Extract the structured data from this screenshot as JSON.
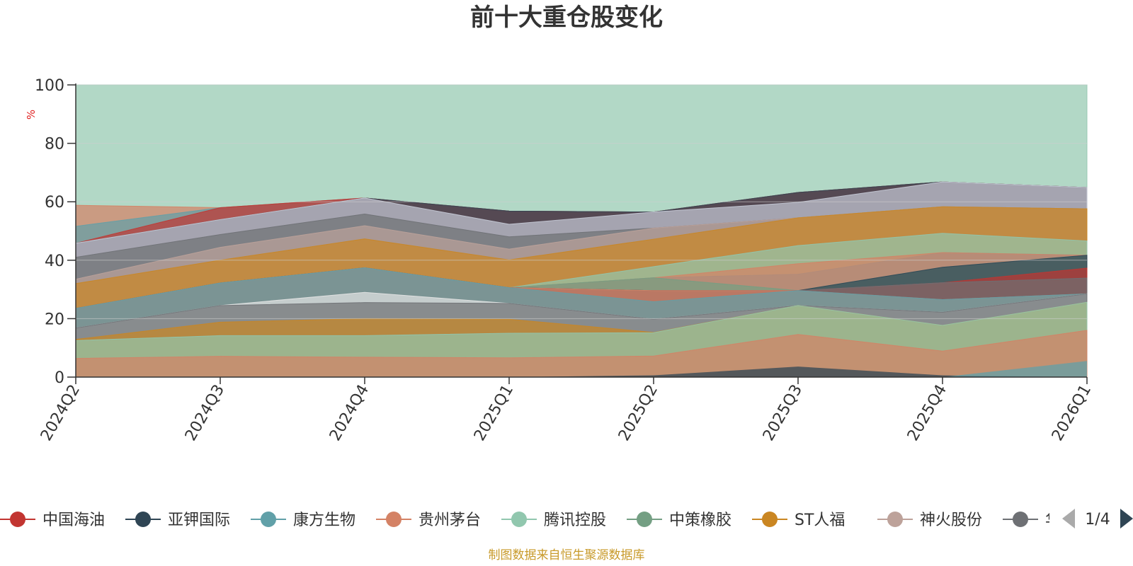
{
  "chart_data": {
    "type": "area",
    "title": "前十大重仓股变化",
    "ylabel": "%",
    "ylim": [
      0,
      100
    ],
    "yticks": [
      0,
      20,
      40,
      60,
      80,
      100
    ],
    "categories": [
      "2024Q2",
      "2024Q3",
      "2024Q4",
      "2025Q1",
      "2025Q2",
      "2025Q3",
      "2025Q4",
      "2026Q1"
    ],
    "grid": true,
    "legend_position": "bottom",
    "legend_page": "1/4",
    "legend": [
      {
        "name": "中国海油",
        "color": "#c23531"
      },
      {
        "name": "亚钾国际",
        "color": "#2f4554"
      },
      {
        "name": "康方生物",
        "color": "#61a0a8"
      },
      {
        "name": "贵州茅台",
        "color": "#d48265"
      },
      {
        "name": "腾讯控股",
        "color": "#91c7ae"
      },
      {
        "name": "中策橡胶",
        "color": "#749f83"
      },
      {
        "name": "ST人福",
        "color": "#ca8622"
      },
      {
        "name": "神火股份",
        "color": "#bda29a"
      },
      {
        "name": "华",
        "color": "#6e7074"
      }
    ],
    "stack_layers": [
      {
        "color": "#d48265",
        "values": [
          6.4,
          7.1,
          6.8,
          6.6,
          7.2,
          14.6,
          8.9,
          16.0
        ]
      },
      {
        "color": "#91c7ae",
        "values": [
          12.5,
          14.2,
          14.2,
          15.0,
          15.2,
          24.5,
          17.7,
          25.6
        ]
      },
      {
        "color": "#ca8622",
        "values": [
          12.9,
          18.8,
          20.0,
          19.8,
          15.3,
          24.5,
          17.7,
          25.6
        ]
      },
      {
        "color": "#6e7074",
        "values": [
          16.8,
          24.5,
          25.5,
          25.2,
          19.8,
          24.5,
          22.2,
          28.5
        ]
      },
      {
        "color": "#e6e6e6",
        "values": [
          16.8,
          24.5,
          29.0,
          25.2,
          19.8,
          24.5,
          22.2,
          28.5
        ]
      },
      {
        "color": "#61a0a8",
        "values": [
          23.5,
          32.2,
          37.4,
          30.6,
          25.8,
          29.6,
          26.5,
          28.5
        ]
      },
      {
        "color": "#d48265",
        "values": [
          23.5,
          32.2,
          37.4,
          30.6,
          29.6,
          29.6,
          26.5,
          28.5
        ]
      },
      {
        "color": "#6e7074",
        "values": [
          23.5,
          32.2,
          37.4,
          30.6,
          29.6,
          29.6,
          32.3,
          33.9
        ]
      },
      {
        "color": "#c23531",
        "values": [
          23.5,
          32.2,
          37.4,
          30.6,
          29.6,
          29.6,
          32.3,
          37.3
        ]
      },
      {
        "color": "#2f4554",
        "values": [
          23.5,
          32.2,
          37.4,
          30.6,
          29.6,
          29.6,
          37.6,
          41.7
        ]
      },
      {
        "color": "#749f83",
        "values": [
          23.5,
          32.2,
          37.4,
          30.6,
          34.0,
          29.6,
          37.6,
          41.7
        ]
      },
      {
        "color": "#d48265",
        "values": [
          23.5,
          32.2,
          37.4,
          30.6,
          34.0,
          38.8,
          42.6,
          41.7
        ]
      },
      {
        "color": "#61a0a8",
        "values": [
          23.5,
          32.2,
          37.4,
          30.6,
          34.0,
          35.2,
          42.6,
          41.7
        ]
      },
      {
        "color": "#91c7ae",
        "values": [
          23.5,
          32.2,
          37.4,
          30.6,
          37.8,
          45.0,
          49.2,
          46.6
        ]
      },
      {
        "color": "#ca8622",
        "values": [
          32.0,
          40.0,
          47.3,
          40.1,
          47.2,
          54.5,
          58.3,
          57.6
        ]
      },
      {
        "color": "#bda29a",
        "values": [
          33.5,
          44.4,
          51.8,
          43.8,
          51.0,
          54.5,
          58.3,
          57.6
        ]
      },
      {
        "color": "#6e7074",
        "values": [
          41.0,
          48.8,
          55.8,
          48.0,
          51.0,
          54.5,
          58.3,
          57.6
        ]
      },
      {
        "color": "#c8ccd8",
        "values": [
          45.8,
          53.9,
          61.3,
          52.3,
          56.5,
          59.8,
          66.8,
          64.9
        ]
      },
      {
        "color": "#2f4554",
        "values": [
          45.8,
          53.9,
          61.3,
          56.8,
          56.5,
          63.2,
          66.8,
          64.9
        ]
      },
      {
        "color": "#c23531",
        "values": [
          45.8,
          58.0,
          61.3,
          56.8,
          56.5,
          63.2,
          66.8,
          64.9
        ]
      },
      {
        "color": "#61a0a8",
        "values": [
          51.6,
          58.0,
          61.3,
          56.8,
          56.5,
          63.2,
          66.8,
          64.9
        ]
      },
      {
        "color": "#d48265",
        "values": [
          58.8,
          58.0,
          61.3,
          56.8,
          56.5,
          63.2,
          66.8,
          64.9
        ]
      },
      {
        "color": "#91c7ae",
        "values": [
          100,
          100,
          100,
          100,
          100,
          100,
          100,
          100
        ]
      }
    ],
    "overlay_layers": [
      {
        "color": "#2f4554",
        "values": [
          0,
          0,
          0,
          0,
          0.6,
          3.6,
          0.6,
          0
        ]
      },
      {
        "color": "#61a0a8",
        "values": [
          0,
          0,
          0,
          0,
          0,
          0,
          0,
          5.5
        ]
      }
    ]
  },
  "footer": {
    "source": "制图数据来自恒生聚源数据库"
  },
  "colors": {
    "title": "#333333",
    "axis": "#333333",
    "grid": "#cfcfcf",
    "ylabel": "#e02020",
    "footer": "#c89a2a",
    "pager_active": "#2f4554",
    "pager_inactive": "#aaaaaa"
  }
}
